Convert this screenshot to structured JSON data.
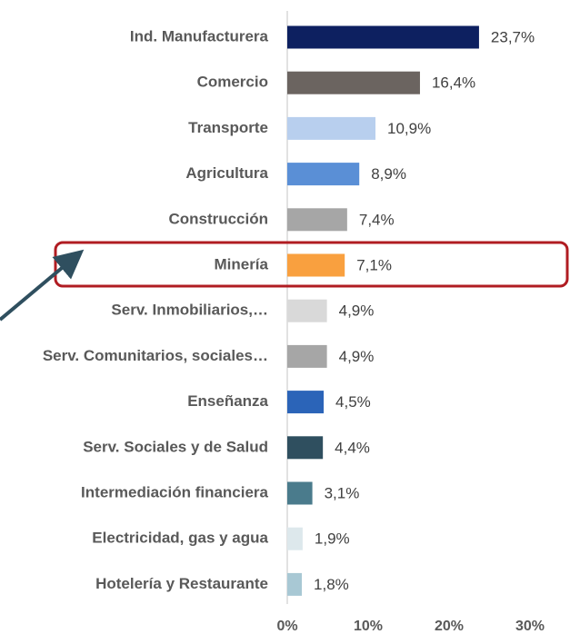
{
  "chart_data": {
    "type": "barh",
    "categories": [
      "Ind. Manufacturera",
      "Comercio",
      "Transporte",
      "Agricultura",
      "Construcción",
      "Minería",
      "Serv. Inmobiliarios,…",
      "Serv. Comunitarios, sociales…",
      "Enseñanza",
      "Serv. Sociales y de Salud",
      "Intermediación financiera",
      "Electricidad, gas y agua",
      "Hotelería y Restaurante"
    ],
    "values": [
      23.7,
      16.4,
      10.9,
      8.9,
      7.4,
      7.1,
      4.9,
      4.9,
      4.5,
      4.4,
      3.1,
      1.9,
      1.8
    ],
    "value_labels": [
      "23,7%",
      "16,4%",
      "10,9%",
      "8,9%",
      "7,4%",
      "7,1%",
      "4,9%",
      "4,9%",
      "4,5%",
      "4,4%",
      "3,1%",
      "1,9%",
      "1,8%"
    ],
    "colors": [
      "#0d2060",
      "#6b6460",
      "#b8cfee",
      "#5a8fd6",
      "#a6a6a6",
      "#f9a03f",
      "#d9d9d9",
      "#a6a6a6",
      "#2b64b8",
      "#2f4f5f",
      "#4a7b8c",
      "#dde8ec",
      "#a8c8d4"
    ],
    "xlim": [
      0,
      30
    ],
    "xticks": [
      {
        "value": 0,
        "label": "0%"
      },
      {
        "value": 10,
        "label": "10%"
      },
      {
        "value": 20,
        "label": "20%"
      },
      {
        "value": 30,
        "label": "30%"
      }
    ],
    "grid": false
  }
}
